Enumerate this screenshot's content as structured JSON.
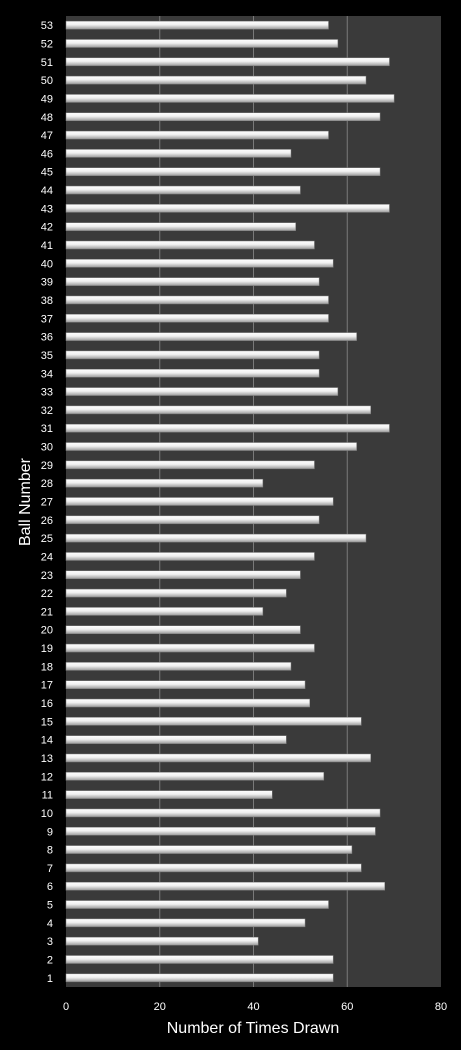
{
  "chart_data": {
    "type": "bar",
    "orientation": "horizontal",
    "title": "",
    "xlabel": "Number of Times Drawn",
    "ylabel": "Ball Number",
    "xlim": [
      0,
      80
    ],
    "xticks": [
      0,
      20,
      40,
      60,
      80
    ],
    "grid": true,
    "legend": "none",
    "colors": {
      "background": "#000000",
      "plot_area": "#3a3a3a",
      "gridline": "#7a7a7a",
      "bar": "#e6e6e6",
      "text": "#ffffff"
    },
    "categories": [
      "1",
      "2",
      "3",
      "4",
      "5",
      "6",
      "7",
      "8",
      "9",
      "10",
      "11",
      "12",
      "13",
      "14",
      "15",
      "16",
      "17",
      "18",
      "19",
      "20",
      "21",
      "22",
      "23",
      "24",
      "25",
      "26",
      "27",
      "28",
      "29",
      "30",
      "31",
      "32",
      "33",
      "34",
      "35",
      "36",
      "37",
      "38",
      "39",
      "40",
      "41",
      "42",
      "43",
      "44",
      "45",
      "46",
      "47",
      "48",
      "49",
      "50",
      "51",
      "52",
      "53"
    ],
    "values": [
      57,
      57,
      41,
      51,
      56,
      68,
      63,
      61,
      66,
      67,
      44,
      55,
      65,
      47,
      63,
      52,
      51,
      48,
      53,
      50,
      42,
      47,
      50,
      53,
      64,
      54,
      57,
      42,
      53,
      62,
      69,
      65,
      58,
      54,
      54,
      62,
      56,
      56,
      54,
      57,
      53,
      49,
      69,
      50,
      67,
      48,
      56,
      67,
      70,
      64,
      69,
      58,
      56
    ]
  }
}
